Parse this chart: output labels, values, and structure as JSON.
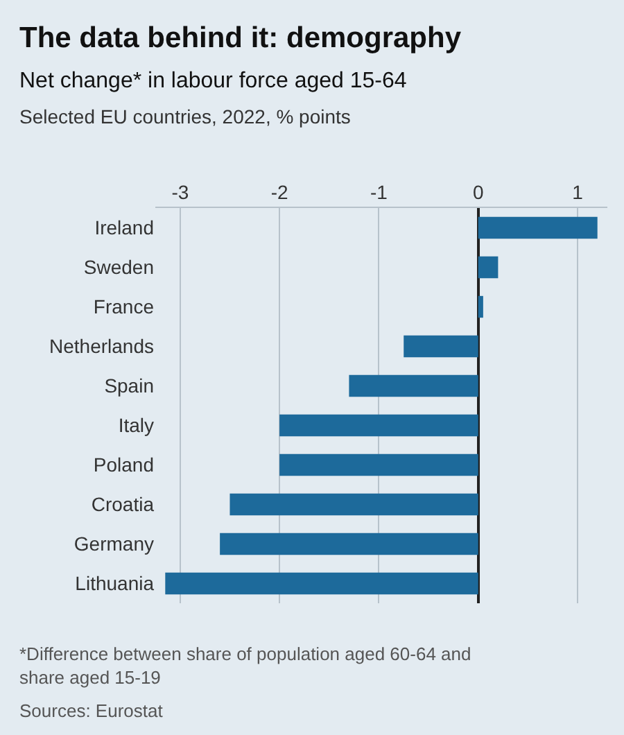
{
  "chart_data": {
    "type": "bar",
    "orientation": "horizontal",
    "title": "The data behind it: demography",
    "subtitle": "Net change* in labour force aged 15-64\nSelected EU countries, 2022, % points",
    "categories": [
      "Ireland",
      "Sweden",
      "France",
      "Netherlands",
      "Spain",
      "Italy",
      "Poland",
      "Croatia",
      "Germany",
      "Lithuania"
    ],
    "series": [
      {
        "color": "#1d6a9b",
        "values": [
          1.2,
          0.2,
          0.05,
          -0.75,
          -1.3,
          -2.0,
          -2.0,
          -2.5,
          -2.6,
          -3.15
        ]
      }
    ],
    "xlim": [
      -3.25,
      1.3
    ],
    "xticks": [
      -3,
      -2,
      -1,
      0,
      1
    ],
    "grid": "x",
    "annotations": [
      "*Difference between share of population aged 60-64 and\nshare aged 15-19",
      "Sources: Eurostat"
    ]
  }
}
